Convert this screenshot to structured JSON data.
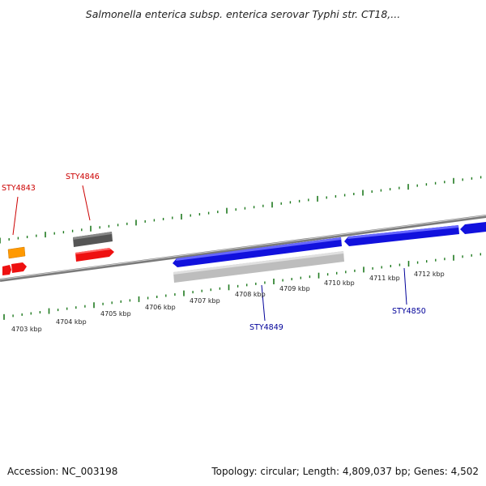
{
  "title": "Salmonella enterica subsp. enterica serovar Typhi str. CT18,...",
  "footer": {
    "accession": "Accession: NC_003198",
    "summary": "Topology: circular; Length: 4,809,037 bp; Genes: 4,502"
  },
  "kbp_labels": [
    "4703 kbp",
    "4704 kbp",
    "4705 kbp",
    "4706 kbp",
    "4707 kbp",
    "4708 kbp",
    "4709 kbp",
    "4710 kbp",
    "4711 kbp",
    "4712 kbp"
  ],
  "gene_labels": {
    "sty4843": "STY4843",
    "sty4846": "STY4846",
    "sty4849": "STY4849",
    "sty4850": "STY4850"
  },
  "colors": {
    "backbone": "#7a7a7a",
    "ticks": "#1f7a1f",
    "red_gene": "#ee1111",
    "blue_gene": "#1111dd",
    "orange_gene": "#ff9900",
    "dark_gray_gene": "#555555",
    "light_gray_gene": "#bdbdbd",
    "red_label": "#cc0000",
    "blue_label": "#000099"
  }
}
